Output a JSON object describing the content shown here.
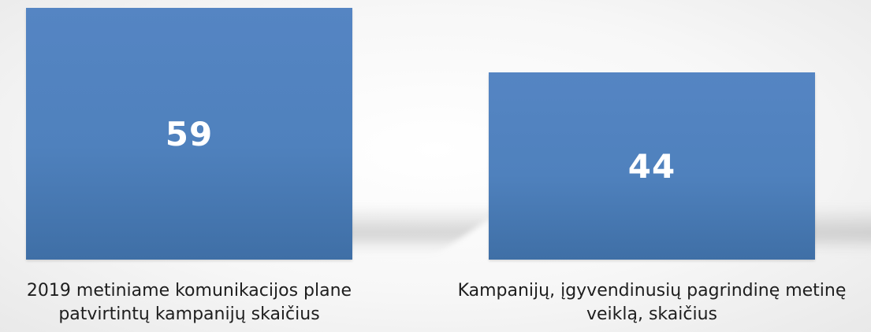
{
  "chart_data": {
    "type": "bar",
    "categories": [
      "2019 metiniame komunikacijos plane\npatvirtintų kampanijų skaičius",
      "Kampanijų, įgyvendinusių pagrindinę metinę\nveiklą, skaičius"
    ],
    "values": [
      59,
      44
    ],
    "value_labels": [
      "59",
      "44"
    ],
    "title": "",
    "xlabel": "",
    "ylabel": "",
    "ylim": [
      0,
      59
    ],
    "grid": false,
    "legend": "none",
    "bar_color": "#4f81bd"
  }
}
